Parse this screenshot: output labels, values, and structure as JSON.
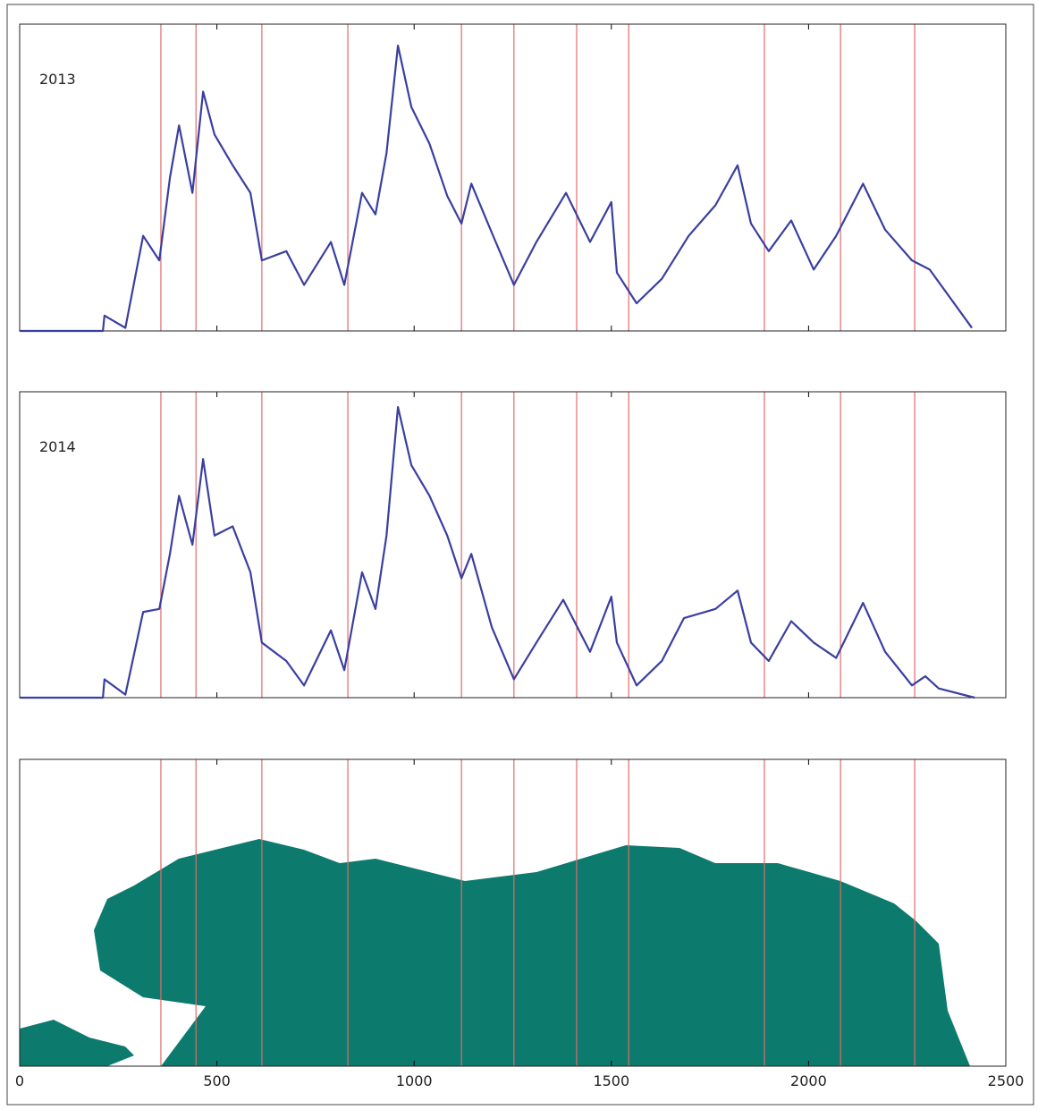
{
  "chart_data": {
    "type": "line",
    "xlim": [
      0,
      2500
    ],
    "xticks": [
      0,
      500,
      1000,
      1500,
      2000,
      2500
    ],
    "vlines": [
      358,
      447,
      614,
      832,
      1120,
      1253,
      1412,
      1544,
      1888,
      2081,
      2269
    ],
    "vline_color": "#e06a6a",
    "series": [
      {
        "name": "2013",
        "color": "#3a3fa0",
        "ylim": [
          0,
          100
        ],
        "x": [
          0,
          211,
          215,
          268,
          313,
          354,
          381,
          404,
          438,
          465,
          494,
          540,
          585,
          614,
          676,
          721,
          789,
          823,
          868,
          902,
          930,
          959,
          993,
          1039,
          1084,
          1120,
          1145,
          1197,
          1253,
          1310,
          1385,
          1446,
          1500,
          1514,
          1564,
          1628,
          1696,
          1764,
          1820,
          1854,
          1899,
          1956,
          2013,
          2070,
          2138,
          2194,
          2262,
          2307,
          2414
        ],
        "values": [
          0,
          0,
          5,
          1,
          31,
          23,
          50,
          67,
          45,
          78,
          64,
          54,
          45,
          23,
          26,
          15,
          29,
          15,
          45,
          38,
          58,
          93,
          73,
          61,
          44,
          35,
          48,
          32,
          15,
          29,
          45,
          29,
          42,
          19,
          9,
          17,
          31,
          41,
          54,
          35,
          26,
          36,
          20,
          31,
          48,
          33,
          23,
          20,
          1
        ]
      },
      {
        "name": "2014",
        "color": "#3a3fa0",
        "ylim": [
          0,
          100
        ],
        "x": [
          0,
          211,
          215,
          268,
          313,
          354,
          381,
          404,
          438,
          465,
          494,
          540,
          585,
          614,
          676,
          721,
          789,
          823,
          868,
          902,
          930,
          959,
          993,
          1039,
          1084,
          1120,
          1145,
          1197,
          1253,
          1310,
          1378,
          1446,
          1500,
          1514,
          1564,
          1628,
          1684,
          1764,
          1820,
          1854,
          1899,
          1956,
          2013,
          2070,
          2138,
          2194,
          2262,
          2296,
          2330,
          2421
        ],
        "values": [
          0,
          0,
          6,
          1,
          28,
          29,
          47,
          66,
          50,
          78,
          53,
          56,
          41,
          18,
          12,
          4,
          22,
          9,
          41,
          29,
          53,
          95,
          76,
          66,
          53,
          39,
          47,
          23,
          6,
          18,
          32,
          15,
          33,
          18,
          4,
          12,
          26,
          29,
          35,
          18,
          12,
          25,
          18,
          13,
          31,
          15,
          4,
          7,
          3,
          0
        ]
      }
    ]
  }
}
